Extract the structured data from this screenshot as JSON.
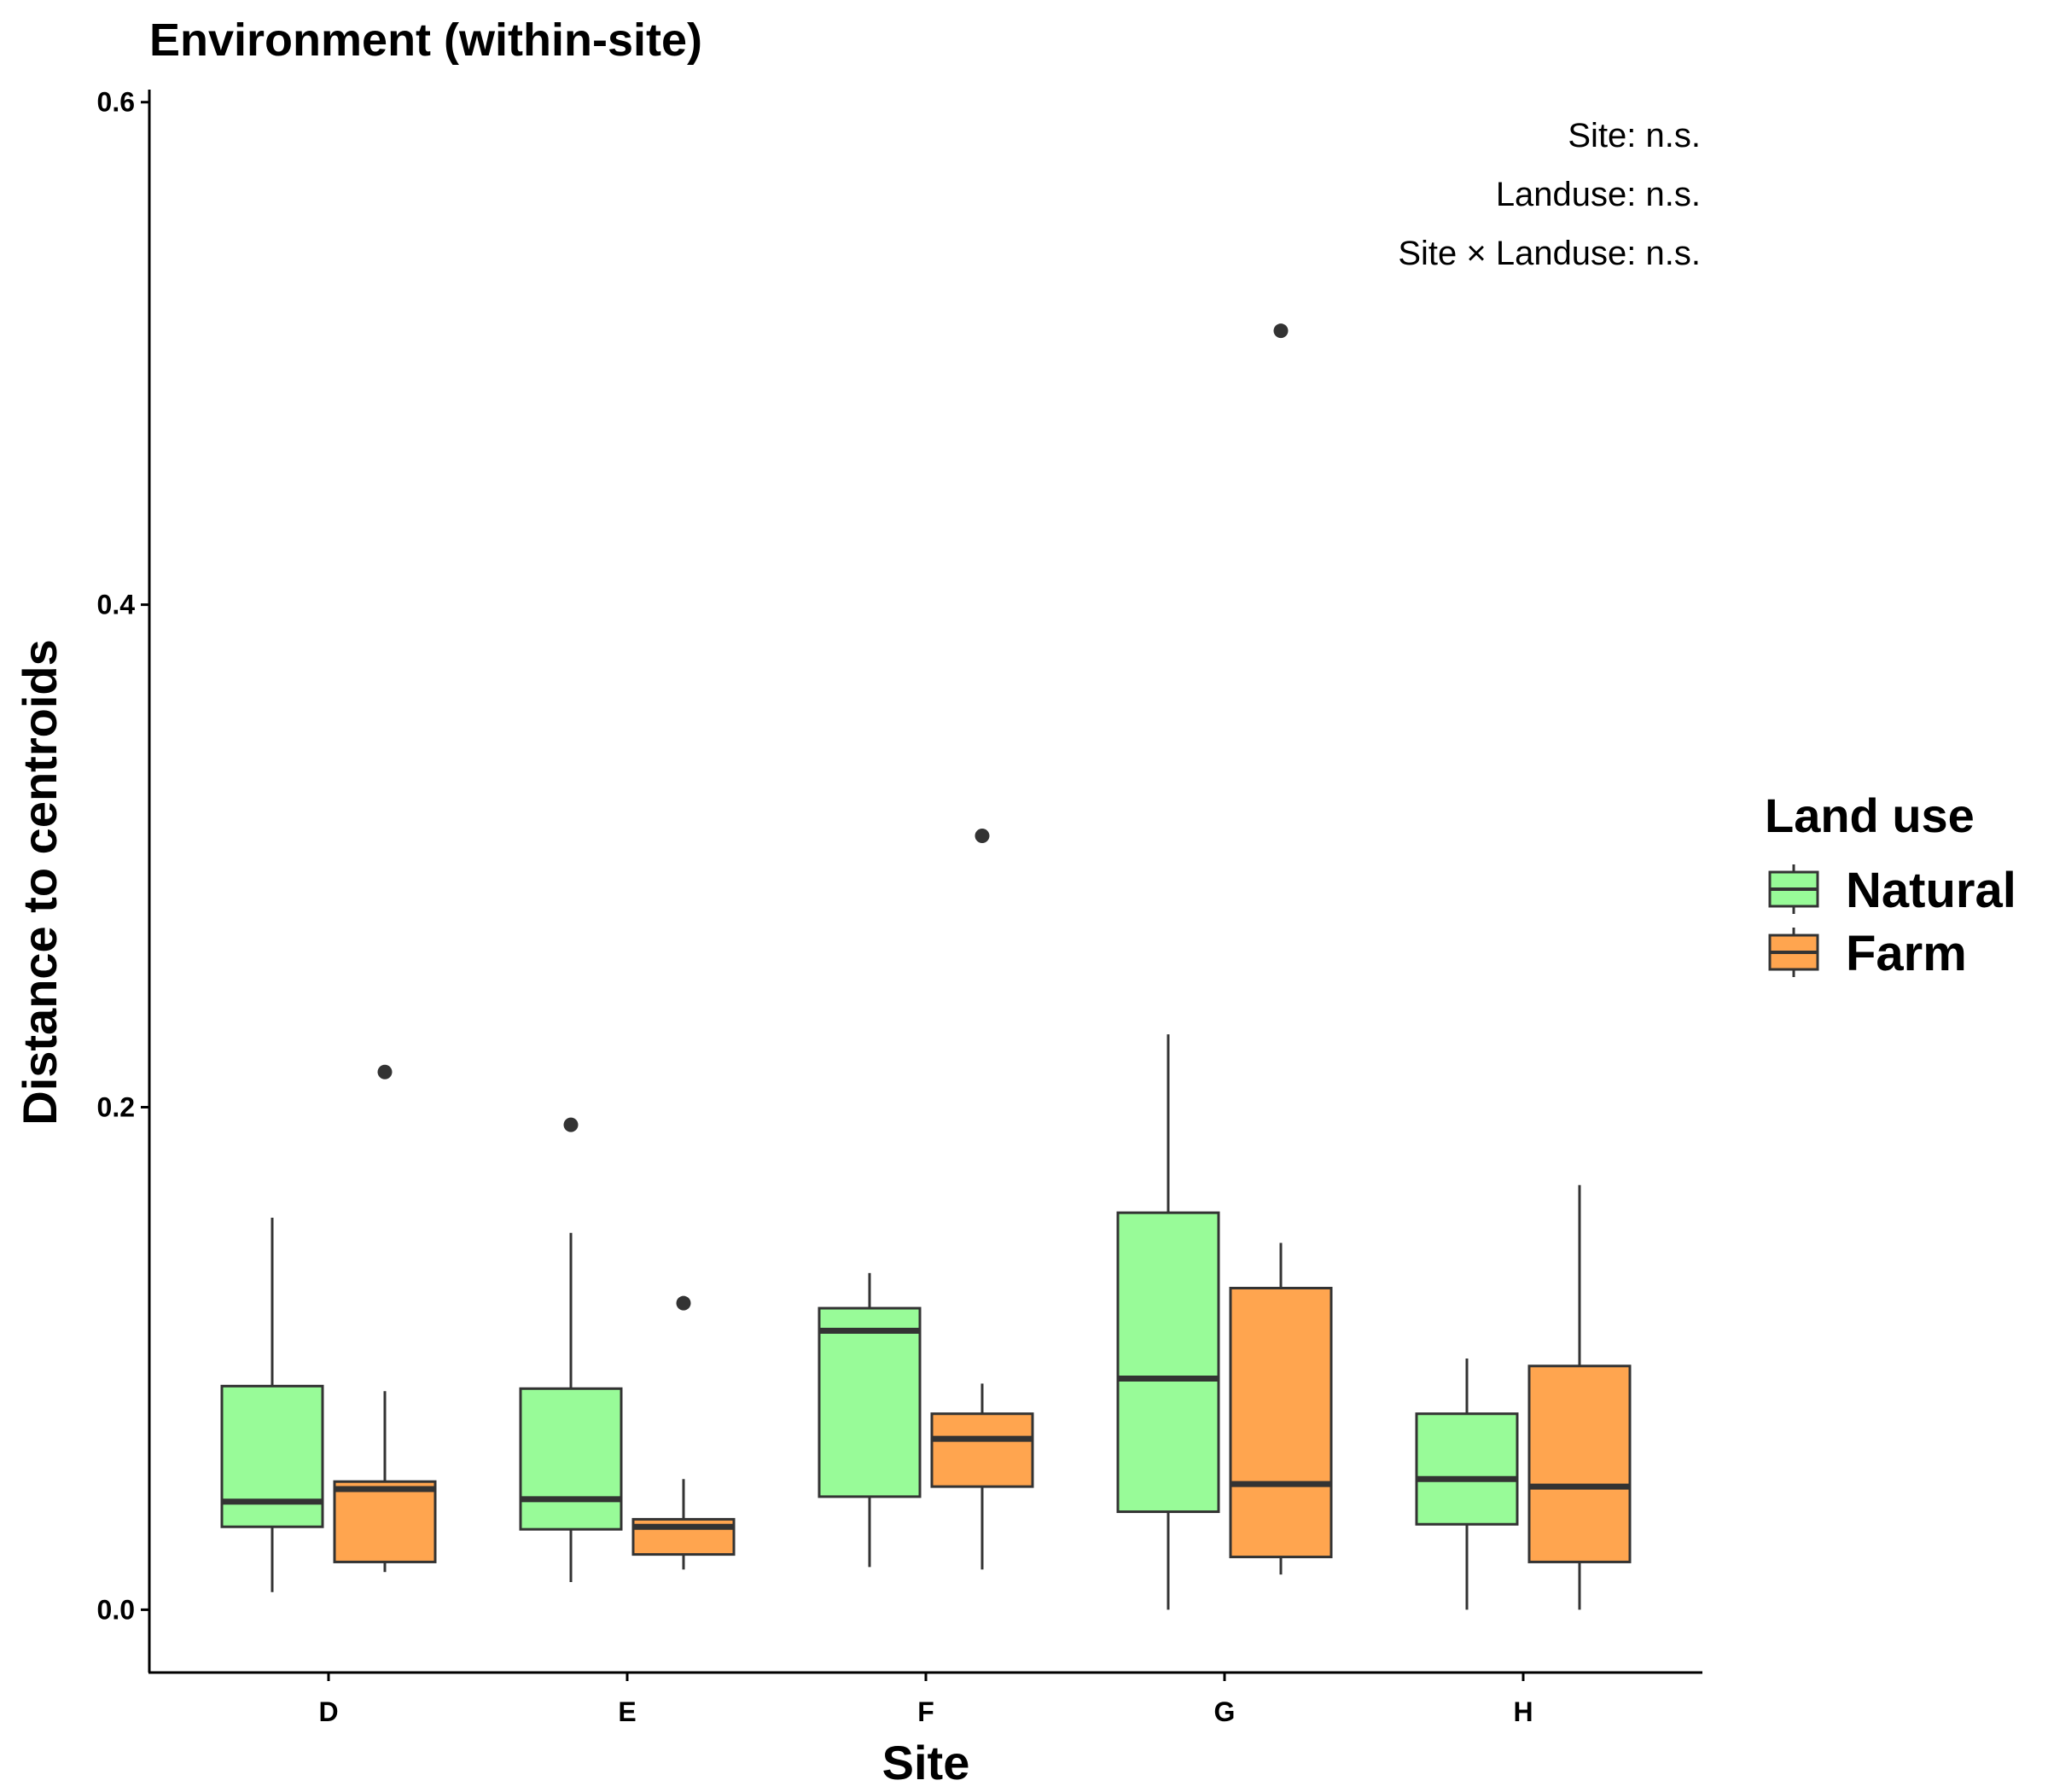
{
  "chart_data": {
    "type": "boxplot",
    "title": "Environment (within-site)",
    "xlabel": "Site",
    "ylabel": "Distance to centroids",
    "categories": [
      "D",
      "E",
      "F",
      "G",
      "H"
    ],
    "ylim": [
      -0.025,
      0.605
    ],
    "yticks": [
      0.0,
      0.2,
      0.4,
      0.6
    ],
    "ytick_labels": [
      "0.0",
      "0.2",
      "0.4",
      "0.6"
    ],
    "grid": false,
    "legend": {
      "title": "Land use",
      "position": "right",
      "entries": [
        {
          "name": "Natural",
          "color": "#98fb98"
        },
        {
          "name": "Farm",
          "color": "#ffa54f"
        }
      ]
    },
    "annotations": [
      "Site: n.s.",
      "Landuse: n.s.",
      "Site × Landuse: n.s."
    ],
    "series": [
      {
        "name": "Natural",
        "color": "#98fb98",
        "boxes": [
          {
            "category": "D",
            "whisker_low": 0.007,
            "q1": 0.033,
            "median": 0.043,
            "q3": 0.089,
            "whisker_high": 0.156,
            "outliers": []
          },
          {
            "category": "E",
            "whisker_low": 0.011,
            "q1": 0.032,
            "median": 0.044,
            "q3": 0.088,
            "whisker_high": 0.15,
            "outliers": [
              0.193
            ]
          },
          {
            "category": "F",
            "whisker_low": 0.017,
            "q1": 0.045,
            "median": 0.111,
            "q3": 0.12,
            "whisker_high": 0.134,
            "outliers": []
          },
          {
            "category": "G",
            "whisker_low": 0.0,
            "q1": 0.039,
            "median": 0.092,
            "q3": 0.158,
            "whisker_high": 0.229,
            "outliers": []
          },
          {
            "category": "H",
            "whisker_low": 0.0,
            "q1": 0.034,
            "median": 0.052,
            "q3": 0.078,
            "whisker_high": 0.1,
            "outliers": []
          }
        ]
      },
      {
        "name": "Farm",
        "color": "#ffa54f",
        "boxes": [
          {
            "category": "D",
            "whisker_low": 0.015,
            "q1": 0.019,
            "median": 0.048,
            "q3": 0.051,
            "whisker_high": 0.087,
            "outliers": [
              0.214
            ]
          },
          {
            "category": "E",
            "whisker_low": 0.016,
            "q1": 0.022,
            "median": 0.033,
            "q3": 0.036,
            "whisker_high": 0.052,
            "outliers": [
              0.122
            ]
          },
          {
            "category": "F",
            "whisker_low": 0.016,
            "q1": 0.049,
            "median": 0.068,
            "q3": 0.078,
            "whisker_high": 0.09,
            "outliers": [
              0.308
            ]
          },
          {
            "category": "G",
            "whisker_low": 0.014,
            "q1": 0.021,
            "median": 0.05,
            "q3": 0.128,
            "whisker_high": 0.146,
            "outliers": [
              0.509
            ]
          },
          {
            "category": "H",
            "whisker_low": 0.0,
            "q1": 0.019,
            "median": 0.049,
            "q3": 0.097,
            "whisker_high": 0.169,
            "outliers": []
          }
        ]
      }
    ]
  }
}
